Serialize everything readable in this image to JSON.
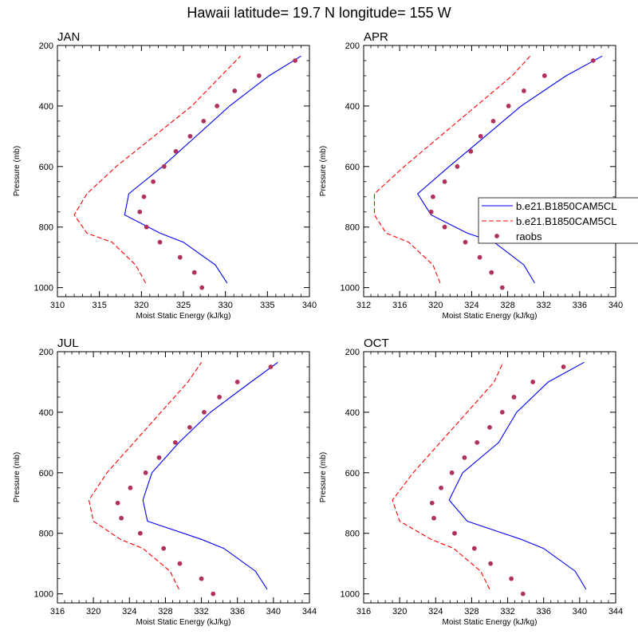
{
  "figure_title": "Hawaii  latitude= 19.7 N longitude= 155 W",
  "colors": {
    "model1": "#0000ff",
    "model2": "#ff0000",
    "obs": "#b03060"
  },
  "legend": {
    "location": "right of APR panel",
    "entries": [
      {
        "label": "b.e21.B1850CAM5CL",
        "style": "solid",
        "color": "#0000ff"
      },
      {
        "label": "b.e21.B1850CAM5CL",
        "style": "dashed",
        "color": "#ff0000"
      },
      {
        "label": "raobs",
        "style": "marker",
        "color": "#b03060"
      }
    ]
  },
  "chart_data": [
    {
      "type": "line",
      "title": "JAN",
      "xlabel": "Moist Static Energy (kJ/kg)",
      "ylabel": "Pressure (mb)",
      "xlim": [
        310,
        340
      ],
      "xticks": [
        310,
        315,
        320,
        325,
        330,
        335,
        340
      ],
      "ylim": [
        200,
        1030
      ],
      "yticks": [
        200,
        400,
        600,
        800,
        1000
      ],
      "y_inverted": true,
      "pressure": [
        985,
        925,
        850,
        820,
        760,
        690,
        600,
        500,
        400,
        300,
        235
      ],
      "series": [
        {
          "name": "b.e21.B1850CAM5CL",
          "style": "solid",
          "color": "#0000ff",
          "values": [
            330.2,
            328.8,
            325.0,
            322.2,
            318.0,
            318.5,
            322.5,
            326.5,
            330.5,
            335.2,
            339.0
          ]
        },
        {
          "name": "b.e21.B1850CAM5CL",
          "style": "dashed",
          "color": "#ff0000",
          "values": [
            320.5,
            319.3,
            316.5,
            313.5,
            312.0,
            313.5,
            317.0,
            321.5,
            326.0,
            329.5,
            331.8
          ]
        }
      ],
      "raobs": {
        "pressure": [
          250,
          300,
          350,
          400,
          450,
          500,
          550,
          600,
          650,
          700,
          750,
          800,
          850,
          900,
          950,
          1000
        ],
        "values": [
          338.3,
          334.0,
          331.1,
          329.0,
          327.4,
          325.8,
          324.1,
          322.7,
          321.4,
          320.3,
          319.8,
          320.6,
          322.2,
          324.6,
          326.3,
          327.2
        ]
      }
    },
    {
      "type": "line",
      "title": "APR",
      "xlabel": "Moist Static Energy (kJ/kg)",
      "ylabel": "Pressure (mb)",
      "xlim": [
        312,
        340
      ],
      "xticks": [
        312,
        316,
        320,
        324,
        328,
        332,
        336,
        340
      ],
      "ylim": [
        200,
        1030
      ],
      "yticks": [
        200,
        400,
        600,
        800,
        1000
      ],
      "y_inverted": true,
      "pressure": [
        985,
        925,
        850,
        820,
        760,
        690,
        600,
        500,
        400,
        300,
        235
      ],
      "series": [
        {
          "name": "b.e21.B1850CAM5CL",
          "style": "solid",
          "color": "#0000ff",
          "values": [
            331.0,
            329.8,
            326.5,
            323.5,
            319.5,
            318.0,
            321.5,
            325.5,
            329.5,
            334.5,
            338.5
          ]
        },
        {
          "name": "b.e21.B1850CAM5CL",
          "style": "dashed",
          "color": "#ff0000",
          "values": [
            320.5,
            319.7,
            317.0,
            314.5,
            313.2,
            313.2,
            316.5,
            320.5,
            324.5,
            328.5,
            330.5
          ]
        }
      ],
      "raobs": {
        "pressure": [
          250,
          300,
          350,
          400,
          450,
          500,
          550,
          600,
          650,
          700,
          750,
          800,
          850,
          900,
          950,
          1000
        ],
        "values": [
          337.5,
          332.1,
          329.8,
          328.1,
          326.4,
          325.0,
          323.9,
          322.4,
          321.0,
          319.7,
          319.5,
          321.0,
          323.3,
          324.9,
          326.2,
          327.4
        ]
      }
    },
    {
      "type": "line",
      "title": "JUL",
      "xlabel": "Moist Static Energy (kJ/kg)",
      "ylabel": "Pressure (mb)",
      "xlim": [
        316,
        344
      ],
      "xticks": [
        316,
        320,
        324,
        328,
        332,
        336,
        340,
        344
      ],
      "ylim": [
        200,
        1030
      ],
      "yticks": [
        200,
        400,
        600,
        800,
        1000
      ],
      "y_inverted": true,
      "pressure": [
        985,
        925,
        850,
        820,
        760,
        690,
        600,
        500,
        400,
        300,
        235
      ],
      "series": [
        {
          "name": "b.e21.B1850CAM5CL",
          "style": "solid",
          "color": "#0000ff",
          "values": [
            339.3,
            338.0,
            334.5,
            332.0,
            326.0,
            325.5,
            326.5,
            329.5,
            333.0,
            337.5,
            340.5
          ]
        },
        {
          "name": "b.e21.B1850CAM5CL",
          "style": "dashed",
          "color": "#ff0000",
          "values": [
            329.5,
            328.5,
            325.5,
            323.0,
            320.0,
            319.5,
            321.5,
            324.5,
            327.5,
            330.5,
            332.0
          ]
        }
      ],
      "raobs": {
        "pressure": [
          250,
          300,
          350,
          400,
          450,
          500,
          550,
          600,
          650,
          700,
          750,
          800,
          850,
          900,
          950,
          1000
        ],
        "values": [
          339.7,
          336.0,
          334.0,
          332.3,
          330.7,
          329.1,
          327.3,
          325.8,
          324.1,
          322.7,
          323.1,
          325.2,
          327.8,
          329.6,
          332.0,
          333.3
        ]
      }
    },
    {
      "type": "line",
      "title": "OCT",
      "xlabel": "Moist Static Energy (kJ/kg)",
      "ylabel": "Pressure (mb)",
      "xlim": [
        316,
        344
      ],
      "xticks": [
        316,
        320,
        324,
        328,
        332,
        336,
        340,
        344
      ],
      "ylim": [
        200,
        1030
      ],
      "yticks": [
        200,
        400,
        600,
        800,
        1000
      ],
      "y_inverted": true,
      "pressure": [
        985,
        925,
        850,
        820,
        760,
        690,
        600,
        500,
        400,
        300,
        235
      ],
      "series": [
        {
          "name": "b.e21.B1850CAM5CL",
          "style": "solid",
          "color": "#0000ff",
          "values": [
            340.7,
            339.5,
            336.0,
            333.5,
            327.5,
            325.5,
            327.0,
            331.0,
            333.0,
            336.5,
            340.5
          ]
        },
        {
          "name": "b.e21.B1850CAM5CL",
          "style": "dashed",
          "color": "#ff0000",
          "values": [
            330.0,
            329.0,
            326.0,
            323.5,
            320.0,
            319.2,
            321.5,
            324.5,
            327.5,
            330.5,
            331.5
          ]
        }
      ],
      "raobs": {
        "pressure": [
          250,
          300,
          350,
          400,
          450,
          500,
          550,
          600,
          650,
          700,
          750,
          800,
          850,
          900,
          950,
          1000
        ],
        "values": [
          338.2,
          334.8,
          332.7,
          331.4,
          330.0,
          328.6,
          327.2,
          325.8,
          324.6,
          323.6,
          323.8,
          326.1,
          328.3,
          330.1,
          332.4,
          333.7
        ]
      }
    }
  ]
}
